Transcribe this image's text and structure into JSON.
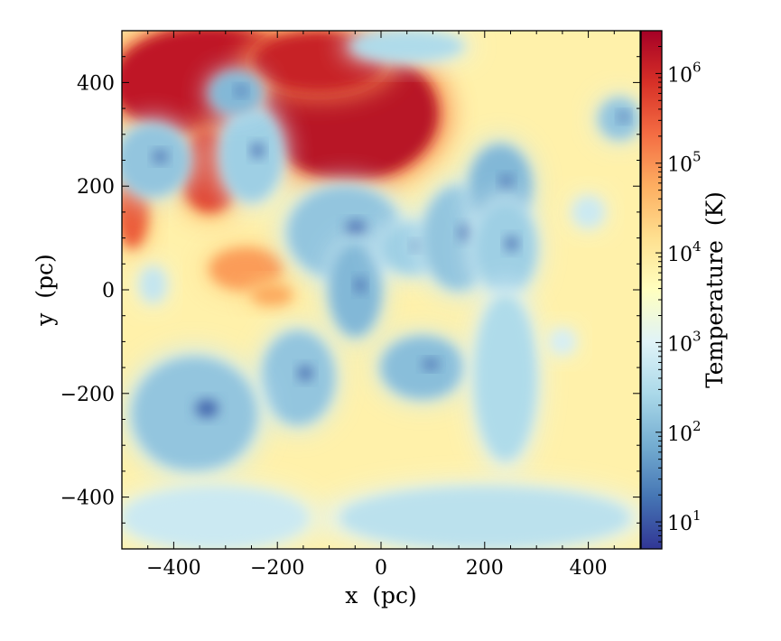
{
  "chart_data": {
    "type": "heatmap",
    "title": "",
    "xlabel": "x  (pc)",
    "ylabel": "y  (pc)",
    "xlim": [
      -500,
      500
    ],
    "ylim": [
      -500,
      500
    ],
    "xticks": [
      -400,
      -200,
      0,
      200,
      400
    ],
    "yticks": [
      -400,
      -200,
      0,
      200,
      400
    ],
    "xtick_labels": [
      "−400",
      "−200",
      "0",
      "200",
      "400"
    ],
    "ytick_labels": [
      "−400",
      "−200",
      "0",
      "200",
      "400"
    ],
    "colorbar": {
      "label": "Temperature  (K)",
      "scale": "log",
      "range": [
        5,
        3000000
      ],
      "ticks": [
        10,
        100,
        1000,
        10000,
        100000,
        1000000
      ],
      "tick_labels": [
        {
          "base": "10",
          "exp": "1"
        },
        {
          "base": "10",
          "exp": "2"
        },
        {
          "base": "10",
          "exp": "3"
        },
        {
          "base": "10",
          "exp": "4"
        },
        {
          "base": "10",
          "exp": "5"
        },
        {
          "base": "10",
          "exp": "6"
        }
      ],
      "colormap": "RdYlBu_r",
      "colors": [
        "#313695",
        "#4575b4",
        "#74add1",
        "#abd9e9",
        "#e0f3f8",
        "#ffffbf",
        "#fee090",
        "#fdae61",
        "#f46d43",
        "#d73027",
        "#a50026"
      ]
    },
    "temperature_field_regions_K": [
      {
        "kind": "hot",
        "x": -330,
        "y": 400,
        "rx": 190,
        "ry": 110,
        "T": 1500000
      },
      {
        "kind": "hot",
        "x": -60,
        "y": 340,
        "rx": 170,
        "ry": 130,
        "T": 1800000
      },
      {
        "kind": "hot",
        "x": -120,
        "y": 440,
        "rx": 130,
        "ry": 60,
        "T": 1200000
      },
      {
        "kind": "hot",
        "x": -330,
        "y": 230,
        "rx": 60,
        "ry": 80,
        "T": 500000
      },
      {
        "kind": "hot",
        "x": -480,
        "y": 150,
        "rx": 30,
        "ry": 70,
        "T": 300000
      },
      {
        "kind": "hot",
        "x": -260,
        "y": 40,
        "rx": 70,
        "ry": 40,
        "T": 80000
      },
      {
        "kind": "hot",
        "x": -210,
        "y": -10,
        "rx": 40,
        "ry": 20,
        "T": 60000
      },
      {
        "kind": "cold",
        "x": -440,
        "y": 250,
        "rx": 70,
        "ry": 70,
        "T": 150
      },
      {
        "kind": "cold",
        "x": -250,
        "y": 260,
        "rx": 60,
        "ry": 90,
        "T": 200
      },
      {
        "kind": "cold",
        "x": -280,
        "y": 380,
        "rx": 50,
        "ry": 40,
        "T": 100
      },
      {
        "kind": "cold",
        "x": -70,
        "y": 110,
        "rx": 110,
        "ry": 90,
        "T": 150
      },
      {
        "kind": "cold",
        "x": -50,
        "y": 0,
        "rx": 50,
        "ry": 90,
        "T": 100
      },
      {
        "kind": "cold",
        "x": 60,
        "y": 80,
        "rx": 60,
        "ry": 50,
        "T": 200
      },
      {
        "kind": "cold",
        "x": 150,
        "y": 100,
        "rx": 70,
        "ry": 100,
        "T": 150
      },
      {
        "kind": "cold",
        "x": 230,
        "y": 200,
        "rx": 60,
        "ry": 80,
        "T": 100
      },
      {
        "kind": "cold",
        "x": 240,
        "y": 80,
        "rx": 60,
        "ry": 90,
        "T": 200
      },
      {
        "kind": "cold",
        "x": 80,
        "y": -150,
        "rx": 80,
        "ry": 60,
        "T": 120
      },
      {
        "kind": "cold",
        "x": -160,
        "y": -170,
        "rx": 70,
        "ry": 90,
        "T": 150
      },
      {
        "kind": "cold",
        "x": -360,
        "y": -240,
        "rx": 120,
        "ry": 110,
        "T": 150
      },
      {
        "kind": "cold",
        "x": 240,
        "y": -170,
        "rx": 60,
        "ry": 160,
        "T": 300
      },
      {
        "kind": "cold",
        "x": 200,
        "y": -440,
        "rx": 280,
        "ry": 60,
        "T": 400
      },
      {
        "kind": "cold",
        "x": -320,
        "y": -440,
        "rx": 180,
        "ry": 60,
        "T": 600
      },
      {
        "kind": "cold",
        "x": 50,
        "y": 470,
        "rx": 110,
        "ry": 30,
        "T": 300
      },
      {
        "kind": "cold",
        "x": 460,
        "y": 330,
        "rx": 40,
        "ry": 40,
        "T": 150
      },
      {
        "kind": "cold",
        "x": 400,
        "y": 150,
        "rx": 30,
        "ry": 30,
        "T": 600
      },
      {
        "kind": "cold",
        "x": -440,
        "y": 10,
        "rx": 25,
        "ry": 35,
        "T": 500
      },
      {
        "kind": "cold",
        "x": 350,
        "y": -100,
        "rx": 25,
        "ry": 25,
        "T": 800
      }
    ]
  }
}
